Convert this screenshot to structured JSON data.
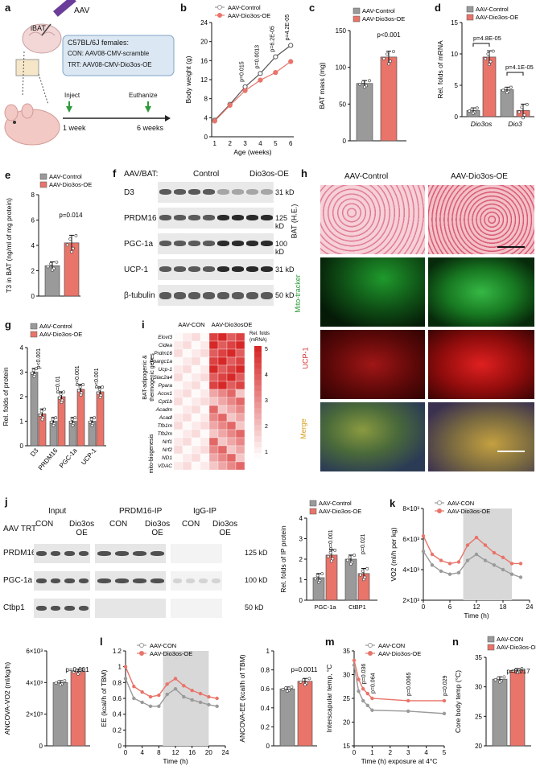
{
  "panels": {
    "a": {
      "letter": "a",
      "aav": "AAV",
      "ibat": "iBAT",
      "strain": "C57BL/6J females:",
      "con": "CON: AAV08-CMV-scramble",
      "trt": "TRT: AAV08-CMV-Dio3os-OE",
      "inject": "Inject",
      "euthanize": "Euthanize",
      "t1": "1 week",
      "t2": "6 weeks",
      "colors": {
        "control": "#9a9a9a",
        "treat": "#e8746a",
        "green": "#2e9a3a",
        "box": "#dbe7f2"
      }
    },
    "b": {
      "letter": "b",
      "legend": [
        "AAV-Control",
        "AAV-Dio3os-OE"
      ],
      "xlabel": "Age (weeks)",
      "ylabel": "Body weight (g)",
      "pvals": [
        "p=0.015",
        "p=0.0013",
        "p=6.2E-05",
        "p=4.2E-05"
      ]
    },
    "c": {
      "letter": "c",
      "legend": [
        "AAV-Control",
        "AAV-Dio3os-OE"
      ],
      "ylabel": "BAT mass  (mg)",
      "pval": "p<0.001"
    },
    "d": {
      "letter": "d",
      "legend": [
        "AAV-Control",
        "AAV-Dio3os-OE"
      ],
      "ylabel": "Rel. folds of mRNA",
      "groups": [
        "Dio3os",
        "Dio3"
      ],
      "pvals": [
        "p=4.8E-05",
        "p=4.1E-05"
      ]
    },
    "e": {
      "letter": "e",
      "legend": [
        "AAV-Control",
        "AAV-Dio3os-OE"
      ],
      "ylabel": "T3 in BAT (ng/ml of mg protein)",
      "pval": "p=0.014"
    },
    "f": {
      "letter": "f",
      "title": "AAV/BAT:",
      "groups": [
        "Control",
        "Dio3os-OE"
      ],
      "rows": [
        {
          "name": "D3",
          "kd": "31 kD"
        },
        {
          "name": "PRDM16",
          "kd": "125 kD"
        },
        {
          "name": "PGC-1a",
          "kd": "100 kD"
        },
        {
          "name": "UCP-1",
          "kd": "31 kD"
        },
        {
          "name": "β-tubulin",
          "kd": "50 kD"
        }
      ]
    },
    "g": {
      "letter": "g",
      "legend": [
        "AAV-Control",
        "AAV-Dio3os-OE"
      ],
      "ylabel": "Rel. folds of protein",
      "pvals": [
        "p<0.001",
        "p=0.01",
        "p<0.001",
        "p<0.001"
      ]
    },
    "h": {
      "letter": "h",
      "cols": [
        "AAV-Control",
        "AAV-Dio3os-OE"
      ],
      "rows": [
        "BAT (H.E.)",
        "Mito-tracker",
        "UCP-1",
        "Merge"
      ]
    },
    "i": {
      "letter": "i",
      "groups": [
        "AAV-CON",
        "AAV-Dio3osOE"
      ],
      "colorbar_title": "Rel. folds\n(mRNA)",
      "colorbar_ticks": [
        "5",
        "4",
        "3",
        "2",
        "1"
      ],
      "cat1": "BAT-adipogenic &\nthermogenic genes",
      "cat2": "mito-biogenesis",
      "genes": [
        "Elovl3",
        "Cidea",
        "Prdm16",
        "Ppargc1a",
        "Ucp-1",
        "Slac2a4",
        "Ppara",
        "Acox1",
        "Cpt1b",
        "Acadm",
        "Acadl",
        "Tfb1m",
        "Tfb2m",
        "Nrf1",
        "Nrf2",
        "ND1",
        "VDAC"
      ]
    },
    "j": {
      "letter": "j",
      "row_label": "AAV TRT",
      "sections": [
        "Input",
        "PRDM16-IP",
        "IgG-IP"
      ],
      "lanes": [
        "CON",
        "Dio3os\nOE",
        "CON",
        "Dio3os\nOE",
        "CON",
        "Dio3os\nOE"
      ],
      "rows": [
        "PRDM16",
        "PGC-1a",
        "Ctbp1"
      ],
      "kd": [
        "125 kD",
        "100 kD",
        "50 kD"
      ],
      "legend": [
        "AAV-Control",
        "AAV-Dio3os-OE"
      ],
      "ylabel": "Rel. folds of IP protein",
      "groups": [
        "PGC-1a",
        "CtBP1"
      ],
      "pvals": [
        "p=0.001",
        "p=0.021"
      ]
    },
    "k": {
      "letter": "k",
      "legend": [
        "AAV-CON",
        "AAV-Dio3os-OE"
      ],
      "ylabel": "VO2 (ml/h per kg)",
      "xlabel": "Time (h)"
    },
    "k2": {
      "ylabel": "ANCOVA-VO2 (ml/kg/h)",
      "pval": "p=0.001"
    },
    "l": {
      "letter": "l",
      "legend": [
        "AAV-CON",
        "AAV-Dio3os-OE"
      ],
      "ylabel": "EE (kcal/h of TBM)",
      "xlabel": "Time (h)"
    },
    "l2": {
      "ylabel": "ANCOVA-EE (kcal/h of TBM)",
      "pval": "p=0.0011"
    },
    "m": {
      "letter": "m",
      "legend": [
        "AAV-CON",
        "AAV-Dio3os-OE"
      ],
      "ylabel": "Interscapular temp, °C",
      "xlabel": "Time (h) exposure at 4°C",
      "pvals": [
        "p=0.036",
        "p=0.064",
        "p=0.0065",
        "p=0.029"
      ]
    },
    "n": {
      "letter": "n",
      "legend": [
        "AAV-CON",
        "AAV-Dio3os-OE"
      ],
      "ylabel": "Core body temp (°C)",
      "pval": "p=0.017"
    }
  },
  "chart_data": [
    {
      "id": "b",
      "type": "line",
      "x": [
        1,
        2,
        3,
        4,
        5,
        6
      ],
      "xlabel": "Age (weeks)",
      "ylabel": "Body weight (g)",
      "ylim": [
        0,
        24
      ],
      "series": [
        {
          "name": "AAV-Control",
          "values": [
            3.5,
            6.8,
            10.5,
            13.3,
            16.8,
            19.2
          ]
        },
        {
          "name": "AAV-Dio3os-OE",
          "values": [
            3.3,
            6.6,
            9.7,
            11.9,
            13.5,
            15.8
          ]
        }
      ]
    },
    {
      "id": "c",
      "type": "bar",
      "categories": [
        "AAV-Control",
        "AAV-Dio3os-OE"
      ],
      "values": [
        78,
        114
      ],
      "ylabel": "BAT mass  (mg)",
      "ylim": [
        0,
        150
      ]
    },
    {
      "id": "d",
      "type": "bar",
      "categories": [
        "Dio3os",
        "Dio3"
      ],
      "ylim": [
        0,
        15
      ],
      "series": [
        {
          "name": "AAV-Control",
          "values": [
            1,
            4.3
          ]
        },
        {
          "name": "AAV-Dio3os-OE",
          "values": [
            9.5,
            1
          ]
        }
      ]
    },
    {
      "id": "e",
      "type": "bar",
      "categories": [
        "AAV-Control",
        "AAV-Dio3os-OE"
      ],
      "values": [
        2.4,
        4.2
      ],
      "ylim": [
        0,
        8
      ]
    },
    {
      "id": "g",
      "type": "bar",
      "categories": [
        "D3",
        "PRDM16",
        "PGC-1a",
        "UCP-1"
      ],
      "ylim": [
        0,
        4
      ],
      "series": [
        {
          "name": "AAV-Control",
          "values": [
            3,
            1,
            1,
            1
          ]
        },
        {
          "name": "AAV-Dio3os-OE",
          "values": [
            1.3,
            2,
            2.3,
            2.2
          ]
        }
      ]
    },
    {
      "id": "j",
      "type": "bar",
      "categories": [
        "PGC-1a",
        "CtBP1"
      ],
      "ylim": [
        0,
        4
      ],
      "series": [
        {
          "name": "AAV-Control",
          "values": [
            1.1,
            2
          ]
        },
        {
          "name": "AAV-Dio3os-OE",
          "values": [
            2.2,
            1.3
          ]
        }
      ]
    },
    {
      "id": "k",
      "type": "line",
      "xlabel": "Time (h)",
      "ylim": [
        2000,
        8000
      ],
      "xlim": [
        0,
        24
      ],
      "x": [
        0,
        2,
        4,
        6,
        8,
        10,
        12,
        14,
        16,
        18,
        20,
        22
      ],
      "series": [
        {
          "name": "AAV-CON",
          "values": [
            5200,
            4300,
            3900,
            3700,
            3800,
            4600,
            5000,
            4600,
            4300,
            4000,
            3700,
            3500
          ]
        },
        {
          "name": "AAV-Dio3os-OE",
          "values": [
            6200,
            5000,
            4600,
            4400,
            4500,
            5600,
            6100,
            5600,
            5100,
            4800,
            4400,
            4400
          ]
        }
      ]
    },
    {
      "id": "k2",
      "type": "bar",
      "categories": [
        "AAV-CON",
        "AAV-Dio3os-OE"
      ],
      "values": [
        4000,
        4700
      ],
      "ylim": [
        0,
        6000
      ]
    },
    {
      "id": "l",
      "type": "line",
      "xlabel": "Time (h)",
      "ylim": [
        0,
        1.2
      ],
      "xlim": [
        0,
        24
      ],
      "x": [
        0,
        2,
        4,
        6,
        8,
        10,
        12,
        14,
        16,
        18,
        20,
        22
      ],
      "series": [
        {
          "name": "AAV-CON",
          "values": [
            0.85,
            0.6,
            0.55,
            0.5,
            0.5,
            0.65,
            0.72,
            0.62,
            0.58,
            0.55,
            0.52,
            0.5
          ]
        },
        {
          "name": "AAV-Dio3os-OE",
          "values": [
            1.0,
            0.75,
            0.68,
            0.62,
            0.64,
            0.78,
            0.85,
            0.76,
            0.7,
            0.66,
            0.62,
            0.6
          ]
        }
      ]
    },
    {
      "id": "l2",
      "type": "bar",
      "categories": [
        "AAV-CON",
        "AAV-Dio3os-OE"
      ],
      "values": [
        0.6,
        0.68
      ],
      "ylim": [
        0,
        1
      ]
    },
    {
      "id": "m",
      "type": "line",
      "xlabel": "Time (h) exposure at 4°C",
      "ylim": [
        15,
        35
      ],
      "xlim": [
        0,
        5
      ],
      "x": [
        0,
        0.25,
        0.5,
        0.75,
        1,
        3,
        5
      ],
      "series": [
        {
          "name": "AAV-CON",
          "values": [
            32,
            26.5,
            24.5,
            23.5,
            22.5,
            22.3,
            21.8
          ]
        },
        {
          "name": "AAV-Dio3os-OE",
          "values": [
            33,
            29,
            27,
            26,
            25,
            24.5,
            24.5
          ]
        }
      ]
    },
    {
      "id": "n",
      "type": "bar",
      "categories": [
        "AAV-CON",
        "AAV-Dio3os-OE"
      ],
      "values": [
        31.3,
        32.8
      ],
      "ylim": [
        20,
        35
      ]
    }
  ]
}
